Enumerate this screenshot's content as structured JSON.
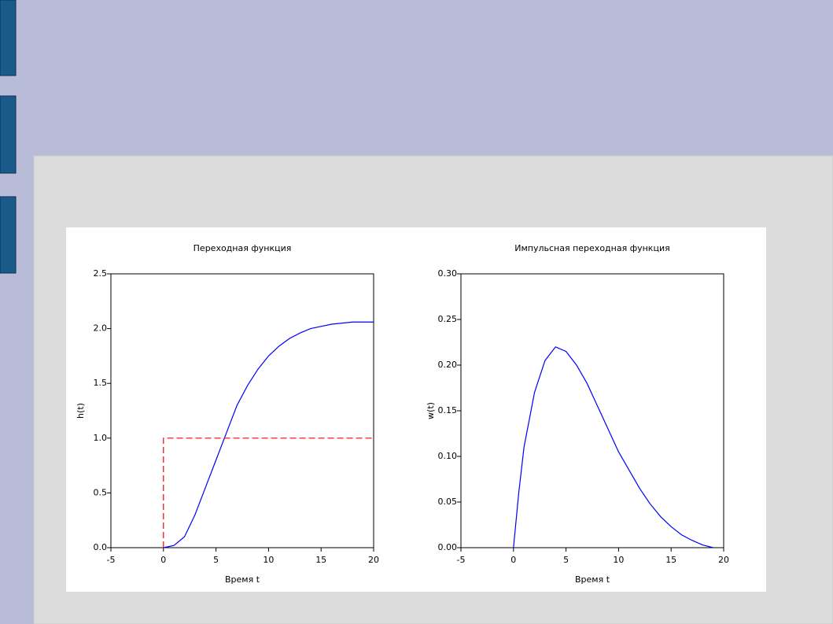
{
  "chart_data": [
    {
      "type": "line",
      "title": "Переходная функция",
      "xlabel": "Время t",
      "ylabel": "h(t)",
      "xlim": [
        -5,
        20
      ],
      "xticks": [
        -5,
        0,
        5,
        10,
        15,
        20
      ],
      "ylim": [
        0,
        2.5
      ],
      "yticks": [
        {
          "value": 0,
          "label": "0.0"
        },
        0.5,
        {
          "value": 1,
          "label": "1.0"
        },
        1.5,
        {
          "value": 2,
          "label": "2.0"
        },
        2.5
      ],
      "series": [
        {
          "color": "#0000ff",
          "dash": false,
          "x": [
            0,
            1,
            2,
            3,
            4,
            5,
            6,
            7,
            8,
            9,
            10,
            11,
            12,
            13,
            14,
            15,
            16,
            17,
            18,
            20
          ],
          "values": [
            0,
            0.02,
            0.1,
            0.3,
            0.55,
            0.8,
            1.05,
            1.3,
            1.48,
            1.63,
            1.75,
            1.84,
            1.91,
            1.96,
            2.0,
            2.02,
            2.04,
            2.05,
            2.06,
            2.06
          ]
        },
        {
          "color": "#ff0000",
          "dash": true,
          "x": [
            0,
            0,
            20
          ],
          "values": [
            0,
            1,
            1
          ]
        }
      ]
    },
    {
      "type": "line",
      "title": "Импульсная переходная функция",
      "xlabel": "Время t",
      "ylabel": "w(t)",
      "xlim": [
        -5,
        20
      ],
      "xticks": [
        -5,
        0,
        5,
        10,
        15,
        20
      ],
      "ylim": [
        0,
        0.3
      ],
      "yticks": [
        {
          "value": 0,
          "label": "0.00"
        },
        0.05,
        {
          "value": 0.1,
          "label": "0.10"
        },
        0.15,
        {
          "value": 0.2,
          "label": "0.20"
        },
        0.25,
        {
          "value": 0.3,
          "label": "0.30"
        }
      ],
      "series": [
        {
          "color": "#0000ff",
          "dash": false,
          "x": [
            0,
            0.5,
            1,
            2,
            3,
            4,
            5,
            6,
            7,
            8,
            9,
            10,
            11,
            12,
            13,
            14,
            15,
            16,
            17,
            18,
            19
          ],
          "values": [
            0,
            0.06,
            0.11,
            0.17,
            0.205,
            0.22,
            0.215,
            0.2,
            0.18,
            0.155,
            0.13,
            0.105,
            0.085,
            0.065,
            0.048,
            0.034,
            0.023,
            0.014,
            0.008,
            0.003,
            0
          ]
        }
      ]
    }
  ]
}
